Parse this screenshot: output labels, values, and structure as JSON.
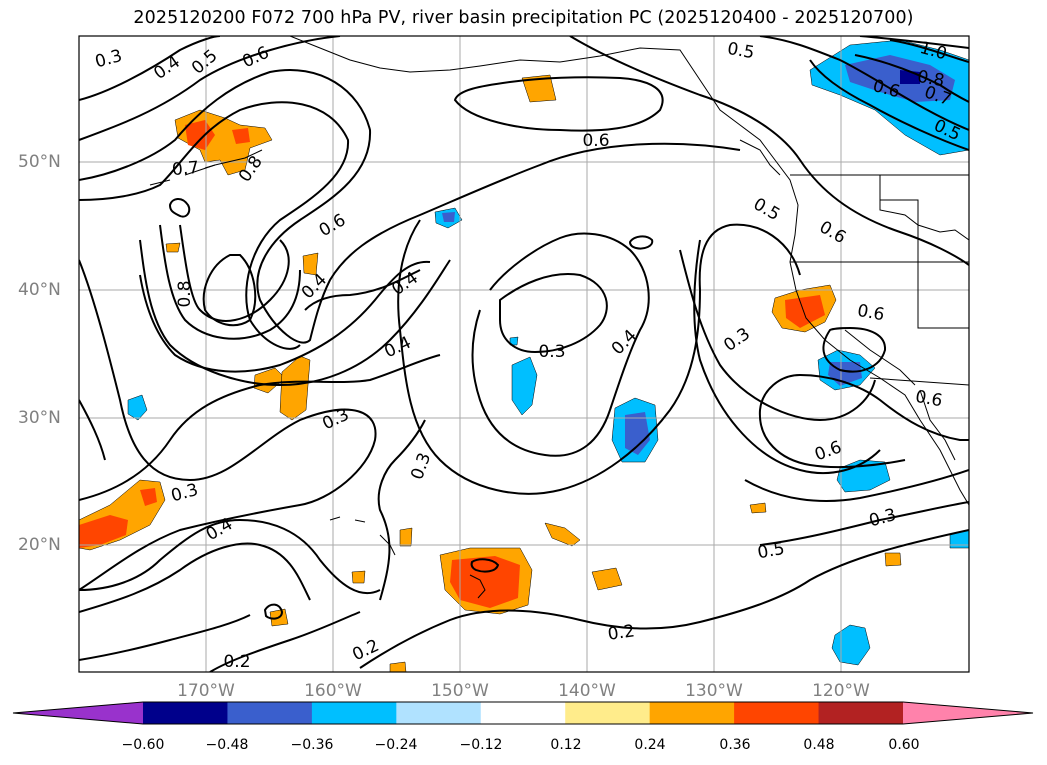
{
  "title": "2025120200 F072 700 hPa PV, river basin precipitation PC (2025120400 - 2025120700)",
  "lat_labels": [
    "50°N",
    "40°N",
    "30°N",
    "20°N"
  ],
  "lon_labels": [
    "170°W",
    "160°W",
    "150°W",
    "140°W",
    "130°W",
    "120°W"
  ],
  "contour_labels": [
    "0.3",
    "0.4",
    "0.5",
    "0.6",
    "0.7",
    "0.8",
    "0.6",
    "0.4",
    "1.0",
    "0.6",
    "0.8",
    "0.7",
    "0.5",
    "0.6",
    "0.5",
    "0.6",
    "0.5",
    "0.8",
    "0.4",
    "0.4",
    "0.3",
    "0.4",
    "0.3",
    "0.6",
    "0.3",
    "0.4",
    "0.3",
    "0.6",
    "0.6",
    "0.3",
    "0.2",
    "0.2",
    "0.2",
    "0.5",
    "0.3"
  ],
  "colorbar": {
    "ticks": [
      "−0.60",
      "−0.48",
      "−0.36",
      "−0.24",
      "−0.12",
      "0.12",
      "0.24",
      "0.36",
      "0.48",
      "0.60"
    ],
    "colors": [
      "#9932cc",
      "#00008b",
      "#3a5fcd",
      "#00bfff",
      "#b0e2ff",
      "#ffffff",
      "#ffec8b",
      "#ffa500",
      "#ff4500",
      "#b22222",
      "#ff82ab"
    ]
  }
}
